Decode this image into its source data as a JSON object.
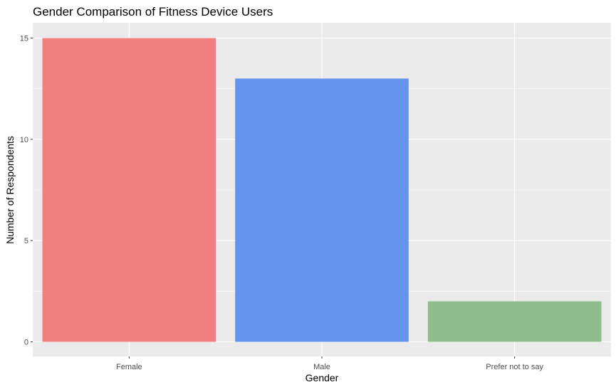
{
  "chart_data": {
    "type": "bar",
    "title": "Gender Comparison of Fitness Device Users",
    "xlabel": "Gender",
    "ylabel": "Number of Respondents",
    "categories": [
      "Female",
      "Male",
      "Prefer not to say"
    ],
    "values": [
      15,
      13,
      2
    ],
    "colors": [
      "#F08080",
      "#6495ED",
      "#8FBC8F"
    ],
    "ylim": [
      0,
      15.75
    ],
    "yticks": [
      0,
      5,
      10,
      15
    ],
    "grid": true,
    "legend": "none",
    "panel_background": "#EBEBEB",
    "grid_color": "#FFFFFF"
  }
}
